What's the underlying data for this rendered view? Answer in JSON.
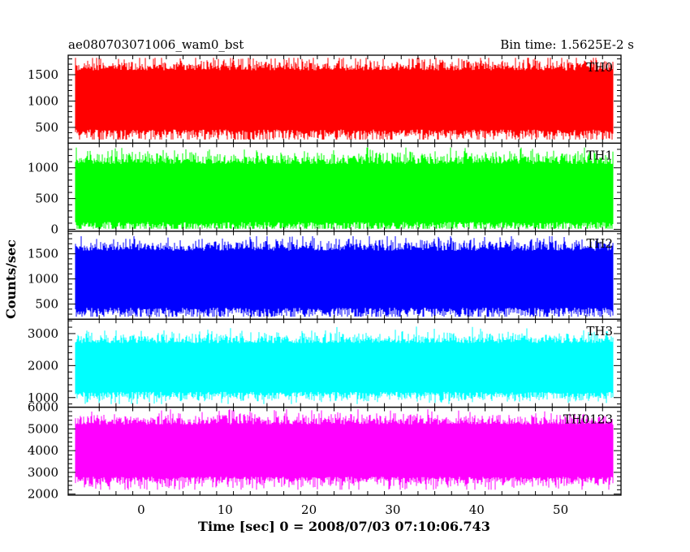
{
  "header": {
    "left": "ae080703071006_wam0_bst",
    "right": "Bin time: 1.5625E-2 s"
  },
  "chart_data": {
    "type": "line",
    "xlabel": "Time [sec] 0 = 2008/07/03 07:10:06.743",
    "ylabel": "Counts/sec",
    "xlim": [
      -8.7,
      57.2
    ],
    "xticks": [
      0,
      10,
      20,
      30,
      40,
      50
    ],
    "x_range_data": [
      -7.8,
      56.2
    ],
    "bin_time_s": 0.015625,
    "grid": false,
    "panels": [
      {
        "label": "TH0",
        "color": "#ff0000",
        "ylim": [
          200,
          1870
        ],
        "yticks": [
          500,
          1000,
          1500
        ],
        "mean": 1010,
        "low": 460,
        "high": 1580,
        "min": 270,
        "max": 1820
      },
      {
        "label": "TH1",
        "color": "#00ff00",
        "ylim": [
          -30,
          1400
        ],
        "yticks": [
          0,
          500,
          1000
        ],
        "mean": 580,
        "low": 120,
        "high": 1060,
        "min": 10,
        "max": 1330
      },
      {
        "label": "TH2",
        "color": "#0000ff",
        "ylim": [
          200,
          1950
        ],
        "yticks": [
          500,
          1000,
          1500
        ],
        "mean": 1030,
        "low": 430,
        "high": 1560,
        "min": 250,
        "max": 1850
      },
      {
        "label": "TH3",
        "color": "#00ffff",
        "ylim": [
          700,
          3450
        ],
        "yticks": [
          1000,
          2000,
          3000
        ],
        "mean": 1950,
        "low": 1180,
        "high": 2700,
        "min": 800,
        "max": 3350
      },
      {
        "label": "TH0123",
        "color": "#ff00ff",
        "ylim": [
          1950,
          6000
        ],
        "yticks": [
          2000,
          3000,
          4000,
          5000,
          6000
        ],
        "mean": 4000,
        "low": 2800,
        "high": 5200,
        "min": 2200,
        "max": 5900
      }
    ]
  }
}
